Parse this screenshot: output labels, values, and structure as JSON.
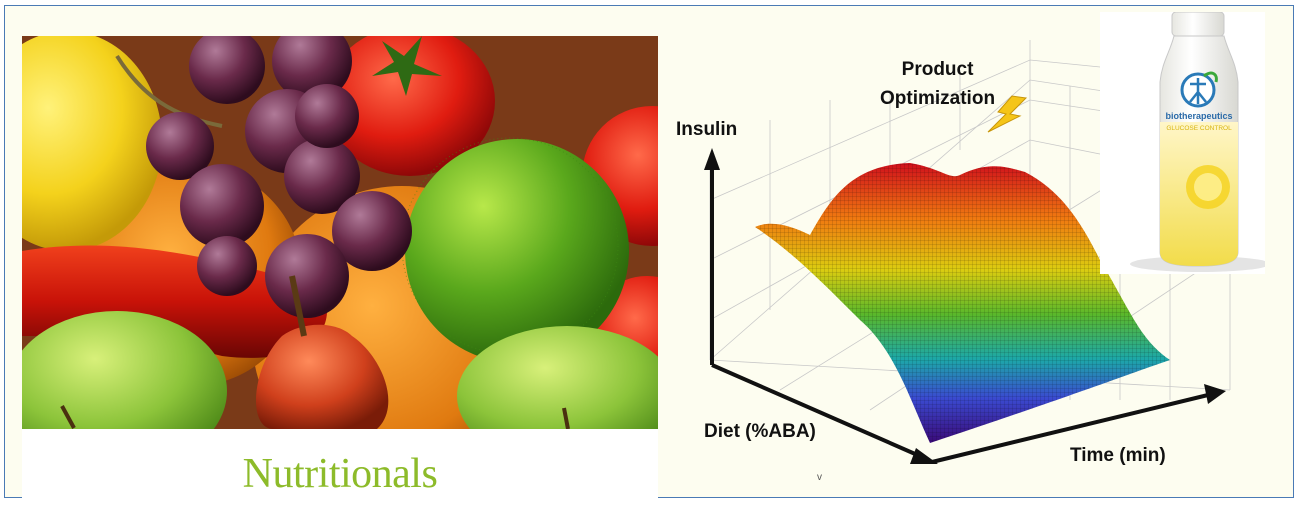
{
  "photo_panel": {
    "caption": "Nutritionals"
  },
  "chart": {
    "product_label_line1": "Product",
    "product_label_line2": "Optimization",
    "z_label": "Insulin",
    "y_label": "Diet (%ABA)",
    "x_label": "Time (min)",
    "minor_mark": "v"
  },
  "bottle": {
    "brand": "biotherapeutics",
    "product": "GLUCOSE CONTROL"
  },
  "colors": {
    "frame_border": "#4a7ab5",
    "caption_green": "#8dbb2a",
    "bolt_yellow": "#f5c518"
  }
}
